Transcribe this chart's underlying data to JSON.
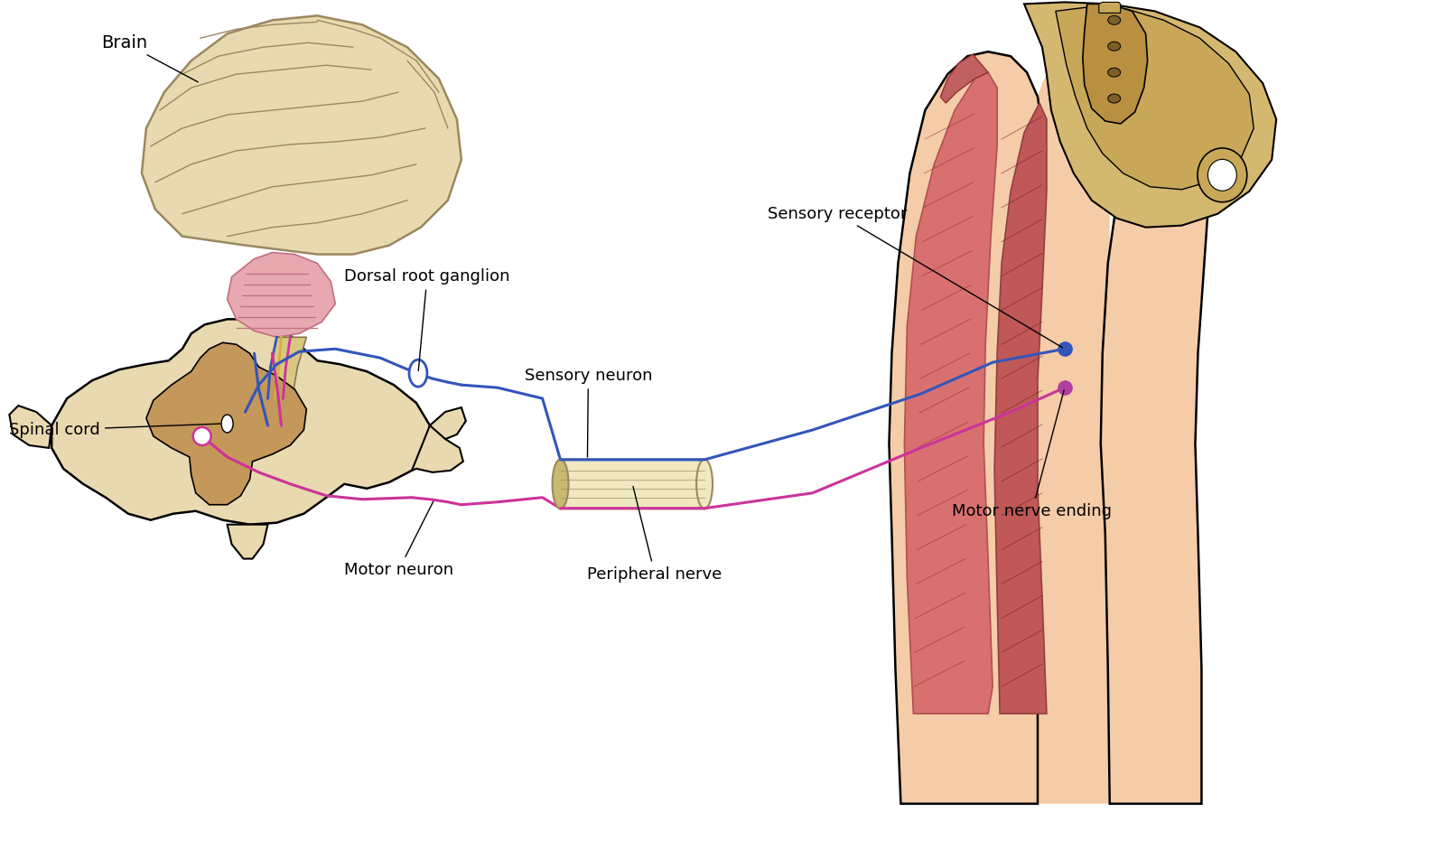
{
  "background_color": "#ffffff",
  "motor_color": "#cc3399",
  "sensory_color": "#3355bb",
  "brain_fill": "#e8d9b0",
  "brain_edge": "#9b8860",
  "brainstem_fill": "#dfd0a0",
  "cerebellum_fill": "#e8a8b0",
  "cerebellum_edge": "#c07080",
  "spinal_outer": "#e8d9b0",
  "spinal_inner": "#c4975a",
  "spinal_edge": "#333333",
  "skin_color": "#f5cca8",
  "muscle1_color": "#d97070",
  "muscle2_color": "#c05858",
  "bone_color": "#d4b870",
  "bone_edge": "#9b8040",
  "nerve_tube_fill": "#f0e8c0",
  "nerve_tube_edge": "#9b8860",
  "label_fs": 13,
  "labels": {
    "brain": "Brain",
    "spinal_cord": "Spinal cord",
    "dorsal_root": "Dorsal root ganglion",
    "sensory_neuron": "Sensory neuron",
    "motor_neuron": "Motor neuron",
    "peripheral_nerve": "Peripheral nerve",
    "sensory_receptor": "Sensory receptor",
    "motor_nerve_ending": "Motor nerve ending"
  }
}
